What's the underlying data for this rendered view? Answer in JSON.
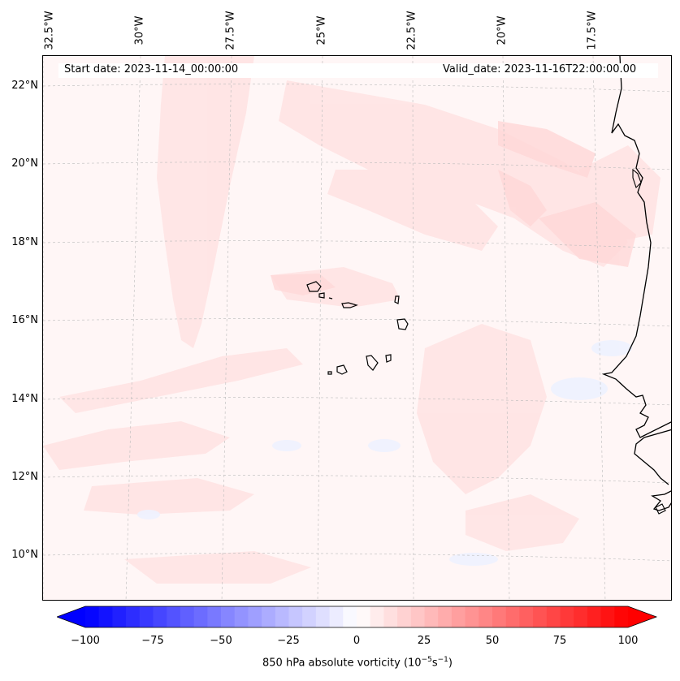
{
  "map": {
    "longitude_labels": [
      "32.5°W",
      "30°W",
      "27.5°W",
      "25°W",
      "22.5°W",
      "20°W",
      "17.5°W"
    ],
    "latitude_labels": [
      "22°N",
      "20°N",
      "18°N",
      "16°N",
      "14°N",
      "12°N",
      "10°N"
    ],
    "start_date": "Start date: 2023-11-14_00:00:00",
    "valid_date": "Valid_date: 2023-11-16T22:00:00.00",
    "field": "850 hPa absolute vorticity",
    "features": [
      "Cabo Verde islands",
      "West African coastline (Mauritania, Senegal, Gambia, Guinea-Bissau, Guinea)"
    ]
  },
  "colorbar": {
    "ticks": [
      "−100",
      "−75",
      "−50",
      "−25",
      "0",
      "25",
      "50",
      "75",
      "100"
    ],
    "range": [
      -100,
      100
    ],
    "step": 5,
    "low_color": "#0000ff",
    "mid_color": "#ffffff",
    "high_color": "#ff0000",
    "label_main": "850 hPa absolute vorticity (10",
    "label_exp1": "−5",
    "label_mid": "s",
    "label_exp2": "−1",
    "label_end": ")"
  }
}
